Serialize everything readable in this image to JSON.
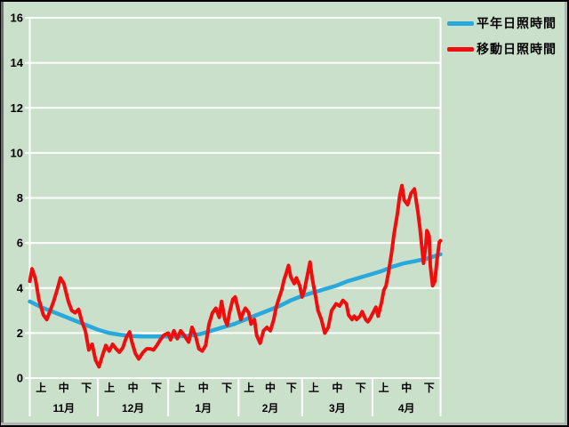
{
  "window": {
    "background_color": "#cbe0cb"
  },
  "legend": {
    "items": [
      {
        "label": "平年日照時間",
        "color": "#29a8dc"
      },
      {
        "label": "移動日照時間",
        "color": "#ee0e0e"
      }
    ]
  },
  "chart_data": {
    "type": "line",
    "title": "",
    "xlabel": "",
    "ylabel": "",
    "ylim": [
      0,
      16
    ],
    "yticks": [
      0,
      2,
      4,
      6,
      8,
      10,
      12,
      14,
      16
    ],
    "grid": "horizontal white gridlines on green background, white plot frame left/right",
    "legend_position": "top-right",
    "x_axis": {
      "period_labels": [
        "上",
        "中",
        "下"
      ],
      "months": [
        {
          "label": "11月",
          "days": 30
        },
        {
          "label": "12月",
          "days": 31
        },
        {
          "label": "1月",
          "days": 31
        },
        {
          "label": "2月",
          "days": 28
        },
        {
          "label": "3月",
          "days": 31
        },
        {
          "label": "4月",
          "days": 30
        }
      ],
      "total_days": 181
    },
    "series": [
      {
        "name": "平年日照時間",
        "color": "#29a8dc",
        "stroke_width": 4.5,
        "points": [
          [
            0,
            3.4
          ],
          [
            5,
            3.15
          ],
          [
            10,
            2.95
          ],
          [
            15,
            2.75
          ],
          [
            20,
            2.55
          ],
          [
            25,
            2.35
          ],
          [
            30,
            2.15
          ],
          [
            35,
            2.0
          ],
          [
            40,
            1.92
          ],
          [
            45,
            1.87
          ],
          [
            50,
            1.85
          ],
          [
            55,
            1.85
          ],
          [
            60,
            1.85
          ],
          [
            65,
            1.85
          ],
          [
            70,
            1.88
          ],
          [
            75,
            1.95
          ],
          [
            80,
            2.1
          ],
          [
            85,
            2.25
          ],
          [
            90,
            2.4
          ],
          [
            95,
            2.6
          ],
          [
            100,
            2.8
          ],
          [
            105,
            3.0
          ],
          [
            110,
            3.2
          ],
          [
            115,
            3.45
          ],
          [
            120,
            3.65
          ],
          [
            125,
            3.8
          ],
          [
            130,
            3.95
          ],
          [
            135,
            4.1
          ],
          [
            140,
            4.3
          ],
          [
            145,
            4.45
          ],
          [
            150,
            4.6
          ],
          [
            155,
            4.75
          ],
          [
            160,
            4.95
          ],
          [
            165,
            5.1
          ],
          [
            170,
            5.2
          ],
          [
            175,
            5.3
          ],
          [
            181,
            5.5
          ]
        ]
      },
      {
        "name": "移動日照時間",
        "color": "#ee0e0e",
        "stroke_width": 4,
        "points": [
          [
            0,
            4.3
          ],
          [
            1,
            4.85
          ],
          [
            2.5,
            4.4
          ],
          [
            4,
            3.5
          ],
          [
            6,
            2.8
          ],
          [
            7.5,
            2.6
          ],
          [
            9,
            3.0
          ],
          [
            10.5,
            3.4
          ],
          [
            12,
            3.9
          ],
          [
            13.5,
            4.45
          ],
          [
            15,
            4.2
          ],
          [
            17,
            3.4
          ],
          [
            18.5,
            3.0
          ],
          [
            20,
            2.9
          ],
          [
            21.5,
            3.05
          ],
          [
            23,
            2.5
          ],
          [
            24.5,
            2.1
          ],
          [
            26,
            1.25
          ],
          [
            27.5,
            1.5
          ],
          [
            29,
            0.8
          ],
          [
            30.5,
            0.5
          ],
          [
            32,
            1.0
          ],
          [
            33.5,
            1.45
          ],
          [
            35,
            1.2
          ],
          [
            36.5,
            1.5
          ],
          [
            38,
            1.3
          ],
          [
            39.5,
            1.15
          ],
          [
            41,
            1.35
          ],
          [
            42.5,
            1.8
          ],
          [
            44,
            2.05
          ],
          [
            45,
            1.6
          ],
          [
            46.5,
            1.1
          ],
          [
            48,
            0.85
          ],
          [
            50,
            1.15
          ],
          [
            51.5,
            1.3
          ],
          [
            53,
            1.3
          ],
          [
            54.5,
            1.25
          ],
          [
            56,
            1.45
          ],
          [
            57.5,
            1.7
          ],
          [
            59,
            1.9
          ],
          [
            61,
            2.0
          ],
          [
            62,
            1.7
          ],
          [
            63.5,
            2.1
          ],
          [
            65,
            1.75
          ],
          [
            66.5,
            2.1
          ],
          [
            68,
            1.9
          ],
          [
            70,
            1.6
          ],
          [
            71.5,
            2.25
          ],
          [
            73,
            1.9
          ],
          [
            74.5,
            1.3
          ],
          [
            76,
            1.2
          ],
          [
            77.5,
            1.45
          ],
          [
            79,
            2.4
          ],
          [
            80.5,
            2.9
          ],
          [
            82,
            3.1
          ],
          [
            83.5,
            2.7
          ],
          [
            84.5,
            3.4
          ],
          [
            86,
            2.6
          ],
          [
            87,
            2.35
          ],
          [
            88,
            2.9
          ],
          [
            89.5,
            3.5
          ],
          [
            90.5,
            3.6
          ],
          [
            92,
            3.0
          ],
          [
            93,
            2.6
          ],
          [
            94,
            2.9
          ],
          [
            95,
            3.1
          ],
          [
            96.5,
            2.9
          ],
          [
            97.5,
            2.4
          ],
          [
            99,
            2.6
          ],
          [
            100,
            1.9
          ],
          [
            101.5,
            1.55
          ],
          [
            103,
            2.1
          ],
          [
            104.5,
            2.25
          ],
          [
            106,
            2.1
          ],
          [
            107.5,
            2.6
          ],
          [
            108.5,
            3.1
          ],
          [
            109.5,
            3.45
          ],
          [
            111,
            3.9
          ],
          [
            112,
            4.35
          ],
          [
            113,
            4.65
          ],
          [
            114,
            5.0
          ],
          [
            115,
            4.5
          ],
          [
            116.5,
            4.2
          ],
          [
            117.5,
            4.45
          ],
          [
            119,
            4.1
          ],
          [
            120,
            3.6
          ],
          [
            121,
            3.9
          ],
          [
            122,
            4.4
          ],
          [
            123.5,
            5.15
          ],
          [
            124.5,
            4.4
          ],
          [
            126,
            3.6
          ],
          [
            127,
            3.0
          ],
          [
            128.5,
            2.6
          ],
          [
            130,
            2.0
          ],
          [
            131.5,
            2.25
          ],
          [
            133,
            3.0
          ],
          [
            135,
            3.3
          ],
          [
            136.5,
            3.2
          ],
          [
            138,
            3.45
          ],
          [
            139.5,
            3.3
          ],
          [
            140.5,
            2.8
          ],
          [
            142,
            2.6
          ],
          [
            143,
            2.75
          ],
          [
            144,
            2.6
          ],
          [
            145.5,
            2.75
          ],
          [
            146.5,
            2.95
          ],
          [
            148,
            2.6
          ],
          [
            149,
            2.5
          ],
          [
            150,
            2.65
          ],
          [
            151,
            2.85
          ],
          [
            152.5,
            3.15
          ],
          [
            153.5,
            2.75
          ],
          [
            155,
            3.35
          ],
          [
            156,
            3.9
          ],
          [
            157,
            4.1
          ],
          [
            158,
            4.65
          ],
          [
            159.5,
            5.6
          ],
          [
            160.5,
            6.4
          ],
          [
            162,
            7.3
          ],
          [
            163,
            8.1
          ],
          [
            164,
            8.55
          ],
          [
            165,
            7.9
          ],
          [
            166.5,
            7.7
          ],
          [
            168,
            8.2
          ],
          [
            169.5,
            8.4
          ],
          [
            171,
            7.4
          ],
          [
            172,
            6.6
          ],
          [
            173,
            5.6
          ],
          [
            173.5,
            5.1
          ],
          [
            174.5,
            5.9
          ],
          [
            175,
            6.55
          ],
          [
            176,
            6.3
          ],
          [
            176.5,
            5.0
          ],
          [
            177.5,
            4.1
          ],
          [
            178.5,
            4.3
          ],
          [
            179.5,
            5.3
          ],
          [
            180.5,
            6.05
          ],
          [
            181,
            6.1
          ]
        ]
      }
    ]
  }
}
